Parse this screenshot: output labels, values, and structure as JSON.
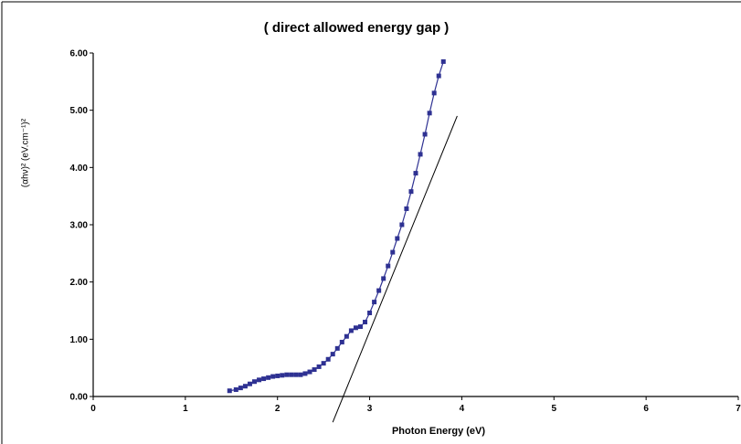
{
  "chart_data": {
    "type": "scatter",
    "title": "( direct allowed energy gap )",
    "xlabel": "Photon Energy (eV)",
    "ylabel": "(αhν)² (eV.cm⁻¹)²",
    "xlim": [
      0,
      7
    ],
    "ylim": [
      0,
      6
    ],
    "x_ticks": [
      "0",
      "1",
      "2",
      "3",
      "4",
      "5",
      "6",
      "7"
    ],
    "y_ticks": [
      "0.00",
      "1.00",
      "2.00",
      "3.00",
      "4.00",
      "5.00",
      "6.00"
    ],
    "grid": false,
    "legend": "none",
    "series": [
      {
        "style": "square markers with connecting line",
        "color": "#2E3192",
        "x": [
          1.48,
          1.55,
          1.6,
          1.65,
          1.7,
          1.75,
          1.8,
          1.85,
          1.9,
          1.95,
          2.0,
          2.05,
          2.1,
          2.15,
          2.2,
          2.25,
          2.3,
          2.35,
          2.4,
          2.45,
          2.5,
          2.55,
          2.6,
          2.65,
          2.7,
          2.75,
          2.8,
          2.85,
          2.9,
          2.95,
          3.0,
          3.05,
          3.1,
          3.15,
          3.2,
          3.25,
          3.3,
          3.35,
          3.4,
          3.45,
          3.5,
          3.55,
          3.6,
          3.65,
          3.7,
          3.75,
          3.8
        ],
        "y": [
          0.1,
          0.12,
          0.15,
          0.18,
          0.22,
          0.26,
          0.29,
          0.31,
          0.33,
          0.35,
          0.36,
          0.37,
          0.38,
          0.38,
          0.38,
          0.38,
          0.4,
          0.43,
          0.47,
          0.52,
          0.58,
          0.65,
          0.74,
          0.84,
          0.95,
          1.05,
          1.15,
          1.2,
          1.22,
          1.3,
          1.46,
          1.65,
          1.85,
          2.06,
          2.28,
          2.52,
          2.76,
          3.0,
          3.28,
          3.58,
          3.9,
          4.23,
          4.58,
          4.95,
          5.3,
          5.6,
          5.85
        ]
      },
      {
        "style": "linear fit line",
        "color": "#000000",
        "x": [
          2.6,
          3.95
        ],
        "y": [
          -0.45,
          4.9
        ]
      }
    ]
  }
}
